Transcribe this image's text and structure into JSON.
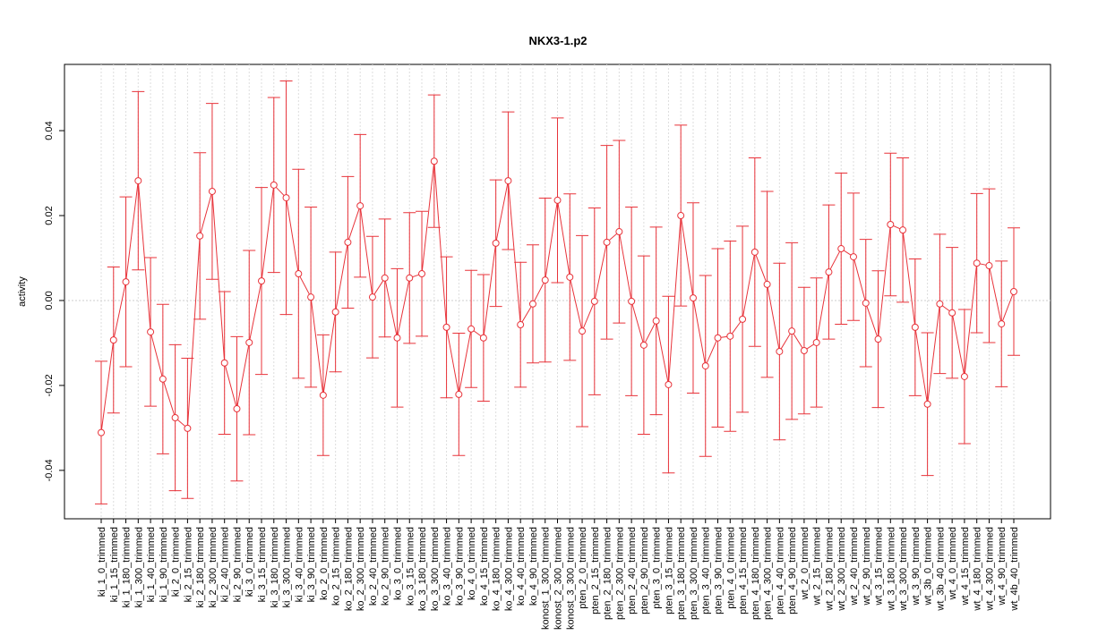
{
  "chart_data": {
    "type": "errorbar-line",
    "title": "NKX3-1.p2",
    "ylabel": "activity",
    "categories": [
      "ki_1_0_trimmed",
      "ki_1_15_trimmed",
      "ki_1_180_trimmed",
      "ki_1_300_trimmed",
      "ki_1_40_trimmed",
      "ki_1_90_trimmed",
      "ki_2_0_trimmed",
      "ki_2_15_trimmed",
      "ki_2_180_trimmed",
      "ki_2_300_trimmed",
      "ki_2_40_trimmed",
      "ki_2_90_trimmed",
      "ki_3_0_trimmed",
      "ki_3_15_trimmed",
      "ki_3_180_trimmed",
      "ki_3_300_trimmed",
      "ki_3_40_trimmed",
      "ki_3_90_trimmed",
      "ko_2_0_trimmed",
      "ko_2_15_trimmed",
      "ko_2_180_trimmed",
      "ko_2_300_trimmed",
      "ko_2_40_trimmed",
      "ko_2_90_trimmed",
      "ko_3_0_trimmed",
      "ko_3_15_trimmed",
      "ko_3_180_trimmed",
      "ko_3_300_trimmed",
      "ko_3_40_trimmed",
      "ko_3_90_trimmed",
      "ko_4_0_trimmed",
      "ko_4_15_trimmed",
      "ko_4_180_trimmed",
      "ko_4_300_trimmed",
      "ko_4_40_trimmed",
      "ko_4_90_trimmed",
      "konost_1_300_trimmed",
      "konost_2_300_trimmed",
      "konost_3_300_trimmed",
      "pten_2_0_trimmed",
      "pten_2_15_trimmed",
      "pten_2_180_trimmed",
      "pten_2_300_trimmed",
      "pten_2_40_trimmed",
      "pten_2_90_trimmed",
      "pten_3_0_trimmed",
      "pten_3_15_trimmed",
      "pten_3_180_trimmed",
      "pten_3_300_trimmed",
      "pten_3_40_trimmed",
      "pten_3_90_trimmed",
      "pten_4_0_trimmed",
      "pten_4_15_trimmed",
      "pten_4_180_trimmed",
      "pten_4_300_trimmed",
      "pten_4_40_trimmed",
      "pten_4_90_trimmed",
      "wt_2_0_trimmed",
      "wt_2_15_trimmed",
      "wt_2_180_trimmed",
      "wt_2_300_trimmed",
      "wt_2_40_trimmed",
      "wt_2_90_trimmed",
      "wt_3_15_trimmed",
      "wt_3_180_trimmed",
      "wt_3_300_trimmed",
      "wt_3_90_trimmed",
      "wt_3b_0_trimmed",
      "wt_3b_40_trimmed",
      "wt_4_0_trimmed",
      "wt_4_15_trimmed",
      "wt_4_180_trimmed",
      "wt_4_300_trimmed",
      "wt_4_90_trimmed",
      "wt_4b_40_trimmed"
    ],
    "values": [
      -0.0311,
      -0.0093,
      0.0044,
      0.0282,
      -0.0074,
      -0.0185,
      -0.0276,
      -0.0301,
      0.0152,
      0.0257,
      -0.0147,
      -0.0255,
      -0.0099,
      0.0046,
      0.0272,
      0.0242,
      0.0063,
      0.0008,
      -0.0223,
      -0.0027,
      0.0137,
      0.0223,
      0.0008,
      0.0053,
      -0.0088,
      0.0053,
      0.0063,
      0.0328,
      -0.0063,
      -0.0221,
      -0.0067,
      -0.0088,
      0.0135,
      0.0282,
      -0.0057,
      -0.0008,
      0.0048,
      0.0236,
      0.0055,
      -0.0072,
      -0.0002,
      0.0137,
      0.0162,
      -0.0002,
      -0.0105,
      -0.0048,
      -0.0198,
      0.02,
      0.0006,
      -0.0154,
      -0.0088,
      -0.0084,
      -0.0044,
      0.0114,
      0.0038,
      -0.012,
      -0.0072,
      -0.0118,
      -0.0099,
      0.0067,
      0.0122,
      0.0103,
      -0.0006,
      -0.0091,
      0.0179,
      0.0166,
      -0.0063,
      -0.0244,
      -0.0008,
      -0.0029,
      -0.0179,
      0.0088,
      0.0082,
      -0.0055,
      0.0021
    ],
    "errors": [
      0.0168,
      0.0172,
      0.02,
      0.021,
      0.0175,
      0.0176,
      0.0172,
      0.0165,
      0.0196,
      0.0207,
      0.0168,
      0.017,
      0.0217,
      0.022,
      0.0206,
      0.0275,
      0.0246,
      0.0212,
      0.0142,
      0.0141,
      0.0155,
      0.0168,
      0.0143,
      0.0139,
      0.0163,
      0.0154,
      0.0147,
      0.0156,
      0.0166,
      0.0144,
      0.0138,
      0.0149,
      0.0149,
      0.0162,
      0.0147,
      0.0139,
      0.0193,
      0.0194,
      0.0196,
      0.0225,
      0.022,
      0.0228,
      0.0215,
      0.0222,
      0.021,
      0.0221,
      0.0208,
      0.0213,
      0.0224,
      0.0213,
      0.021,
      0.0224,
      0.0219,
      0.0222,
      0.0219,
      0.0208,
      0.0208,
      0.0149,
      0.0152,
      0.0158,
      0.0178,
      0.015,
      0.015,
      0.0161,
      0.0168,
      0.017,
      0.0161,
      0.0168,
      0.0164,
      0.0154,
      0.0158,
      0.0164,
      0.0181,
      0.0148,
      0.015
    ],
    "color": "#e8333a",
    "ylim": [
      -0.0514,
      0.0556
    ],
    "yticks": [
      -0.04,
      -0.02,
      {
        "value": 0,
        "label": "0.00"
      },
      0.02,
      0.04
    ],
    "grid": true
  }
}
